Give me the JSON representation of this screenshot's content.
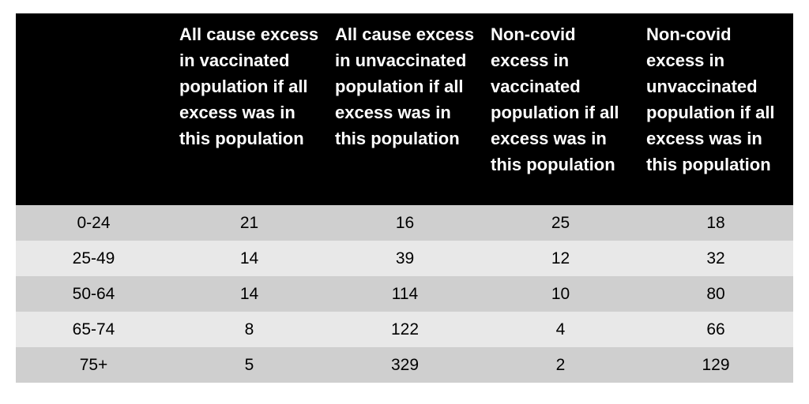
{
  "chart_data": {
    "type": "table",
    "columns": [
      "",
      "All cause excess in vaccinated population if all excess was in this population",
      "All cause excess in unvaccinated population if all excess was in this population",
      "Non-covid excess in vaccinated population if all excess was in this population",
      "Non-covid excess in unvaccinated population if all excess was in this population"
    ],
    "rows": [
      [
        "0-24",
        "21",
        "16",
        "25",
        "18"
      ],
      [
        "25-49",
        "14",
        "39",
        "12",
        "32"
      ],
      [
        "50-64",
        "14",
        "114",
        "10",
        "80"
      ],
      [
        "65-74",
        "8",
        "122",
        "4",
        "66"
      ],
      [
        "75+",
        "5",
        "329",
        "2",
        "129"
      ]
    ],
    "colors": {
      "header_bg": "#000000",
      "header_text": "#ffffff",
      "row_odd": "#cfcfcf",
      "row_even": "#e8e8e8"
    }
  }
}
